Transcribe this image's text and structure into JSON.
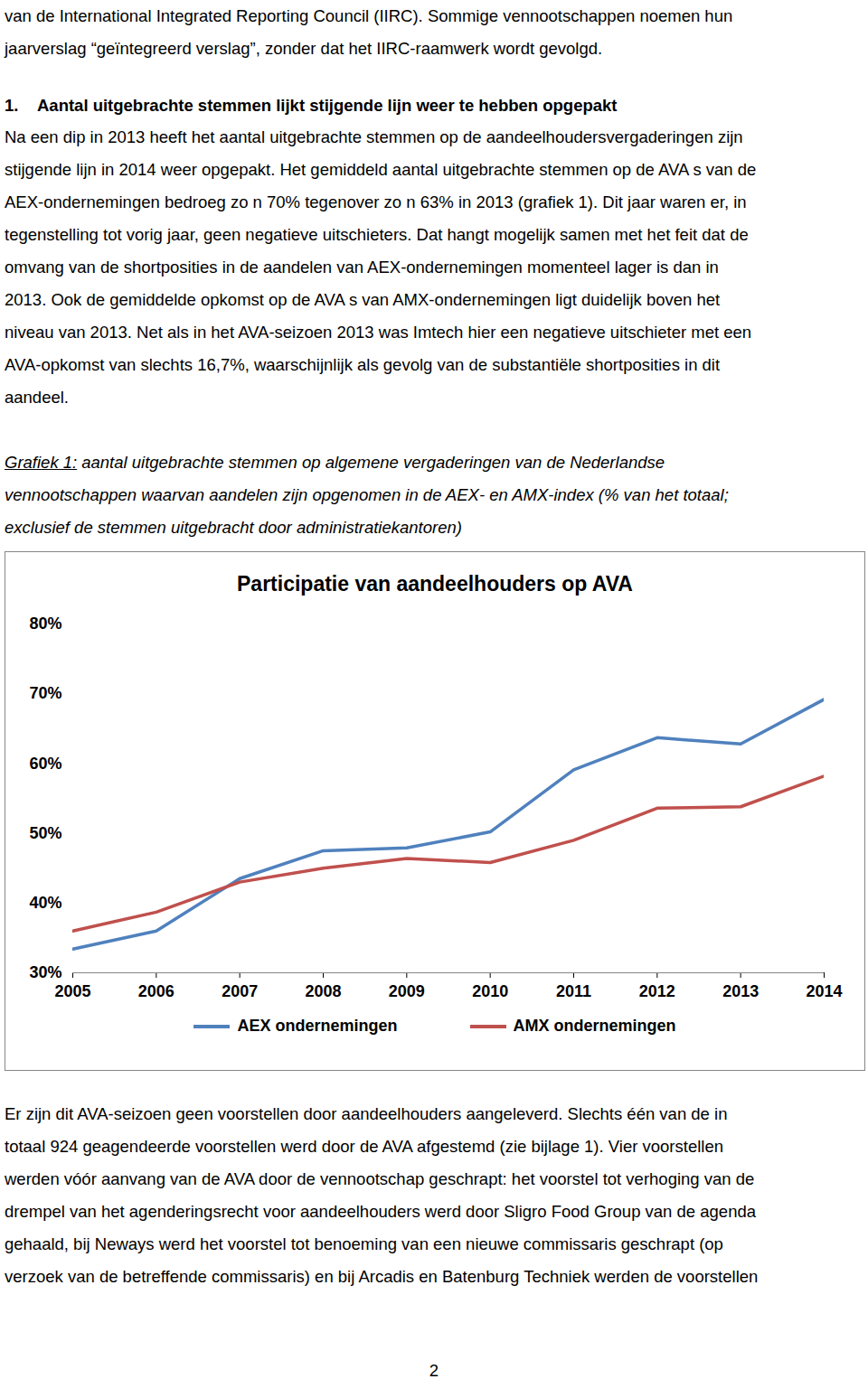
{
  "intro": {
    "lines": [
      "van de International Integrated Reporting Council (IIRC). Sommige vennootschappen noemen hun",
      "jaarverslag “geïntegreerd verslag”, zonder dat het IIRC-raamwerk wordt gevolgd."
    ]
  },
  "heading": {
    "number": "1.",
    "text": "Aantal uitgebrachte stemmen lijkt stijgende lijn weer te hebben opgepakt"
  },
  "paragraph": {
    "lines": [
      "Na een dip in 2013 heeft het aantal uitgebrachte stemmen op de aandeelhoudersvergaderingen zijn",
      "stijgende lijn in 2014 weer opgepakt. Het gemiddeld aantal uitgebrachte stemmen op de AVA s van de",
      "AEX-ondernemingen bedroeg zo n 70% tegenover zo n 63% in 2013 (grafiek 1). Dit jaar waren er, in",
      "tegenstelling tot vorig jaar, geen negatieve uitschieters. Dat hangt mogelijk samen met het feit dat de",
      "omvang van de shortposities in de aandelen van AEX-ondernemingen momenteel lager is dan in",
      "2013. Ook de gemiddelde opkomst op de AVA s van AMX-ondernemingen ligt duidelijk boven het",
      "niveau van 2013. Net als in het AVA-seizoen 2013 was Imtech hier een negatieve uitschieter met een",
      "AVA-opkomst van slechts 16,7%, waarschijnlijk als gevolg van de substantiële shortposities in dit",
      "aandeel."
    ]
  },
  "caption": {
    "label": "Grafiek 1:",
    "lines": [
      "aantal uitgebrachte stemmen op algemene vergaderingen van de Nederlandse",
      "vennootschappen waarvan aandelen zijn opgenomen in de AEX- en AMX-index (% van het totaal;",
      "exclusief de stemmen uitgebracht door administratiekantoren)"
    ]
  },
  "chart_data": {
    "type": "line",
    "title": "Participatie van aandeelhouders op AVA",
    "x": [
      2005,
      2006,
      2007,
      2008,
      2009,
      2010,
      2011,
      2012,
      2013,
      2014
    ],
    "series": [
      {
        "name": "AEX ondernemingen",
        "color": "#4f81bd",
        "values": [
          33.4,
          36.0,
          43.5,
          47.5,
          47.9,
          50.2,
          59.1,
          63.7,
          62.8,
          69.2
        ]
      },
      {
        "name": "AMX ondernemingen",
        "color": "#c0504d",
        "values": [
          36.0,
          38.7,
          43.0,
          45.0,
          46.4,
          45.8,
          49.0,
          53.6,
          53.8,
          58.2
        ]
      }
    ],
    "xlim": [
      2005,
      2014
    ],
    "xticks": [
      2005,
      2006,
      2007,
      2008,
      2009,
      2010,
      2011,
      2012,
      2013,
      2014
    ],
    "ylim": [
      30,
      80
    ],
    "yticks": [
      {
        "value": 30,
        "label": "30%"
      },
      {
        "value": 40,
        "label": "40%"
      },
      {
        "value": 50,
        "label": "50%"
      },
      {
        "value": 60,
        "label": "60%"
      },
      {
        "value": 70,
        "label": "70%"
      },
      {
        "value": 80,
        "label": "80%"
      }
    ],
    "grid": false,
    "legend": "bottom"
  },
  "paragraph2": {
    "lines": [
      "Er zijn dit AVA-seizoen geen voorstellen door aandeelhouders aangeleverd. Slechts één van de in",
      "totaal 924 geagendeerde voorstellen werd door de AVA afgestemd (zie bijlage 1). Vier voorstellen",
      "werden vóór aanvang van de AVA door de vennootschap geschrapt: het voorstel tot verhoging van de",
      "drempel van het agenderingsrecht voor aandeelhouders werd door Sligro Food Group van de agenda",
      "gehaald, bij Neways werd het voorstel tot benoeming van een nieuwe commissaris geschrapt (op",
      "verzoek van de betreffende commissaris) en bij Arcadis en Batenburg Techniek werden de voorstellen"
    ]
  },
  "page_number": "2"
}
